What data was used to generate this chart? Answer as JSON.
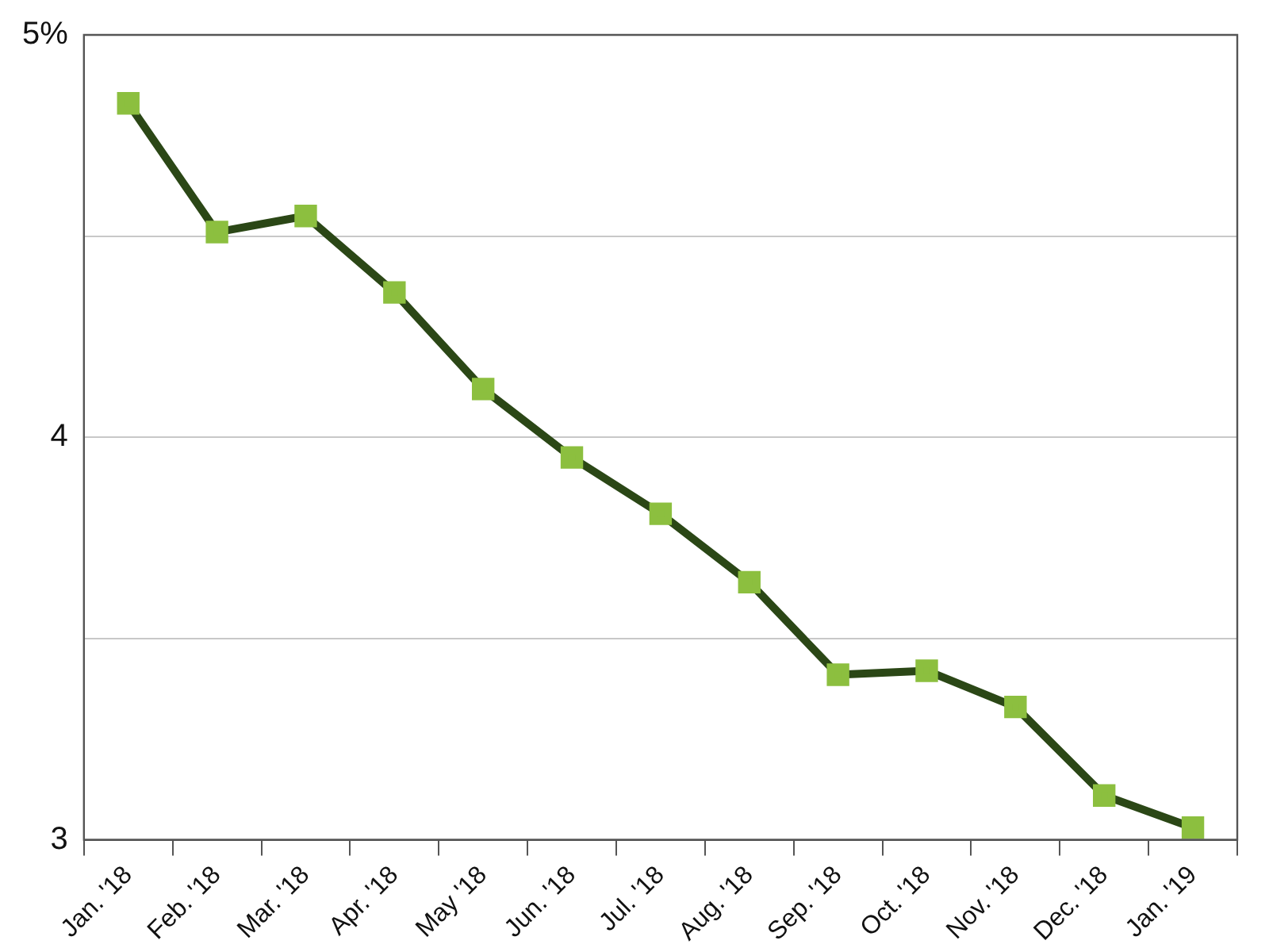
{
  "chart_data": {
    "type": "line",
    "categories": [
      "Jan. '18",
      "Feb. '18",
      "Mar. '18",
      "Apr. '18",
      "May '18",
      "Jun. '18",
      "Jul. '18",
      "Aug. '18",
      "Sep. '18",
      "Oct. '18",
      "Nov. '18",
      "Dec. '18",
      "Jan. '19"
    ],
    "series": [
      {
        "color": "#2b4716",
        "colors": [
          "#8cbf3f",
          "#8cbf3f",
          "#8cbf3f",
          "#8cbf3f",
          "#8cbf3f",
          "#8cbf3f",
          "#8cbf3f",
          "#8cbf3f",
          "#8cbf3f",
          "#8cbf3f",
          "#8cbf3f",
          "#8cbf3f",
          "#8cbf3f"
        ],
        "values": [
          4.83,
          4.51,
          4.55,
          4.36,
          4.12,
          3.95,
          3.81,
          3.64,
          3.41,
          3.42,
          3.33,
          3.11,
          3.03
        ]
      }
    ],
    "ylim": [
      3,
      5
    ],
    "yticks": [
      3,
      {
        "value": 3.5,
        "label": null
      },
      4,
      {
        "value": 4.5,
        "label": null
      },
      {
        "value": 5,
        "label": "5%"
      }
    ],
    "grid": "y",
    "legend": false,
    "marker": "square",
    "line_style": "solid"
  }
}
